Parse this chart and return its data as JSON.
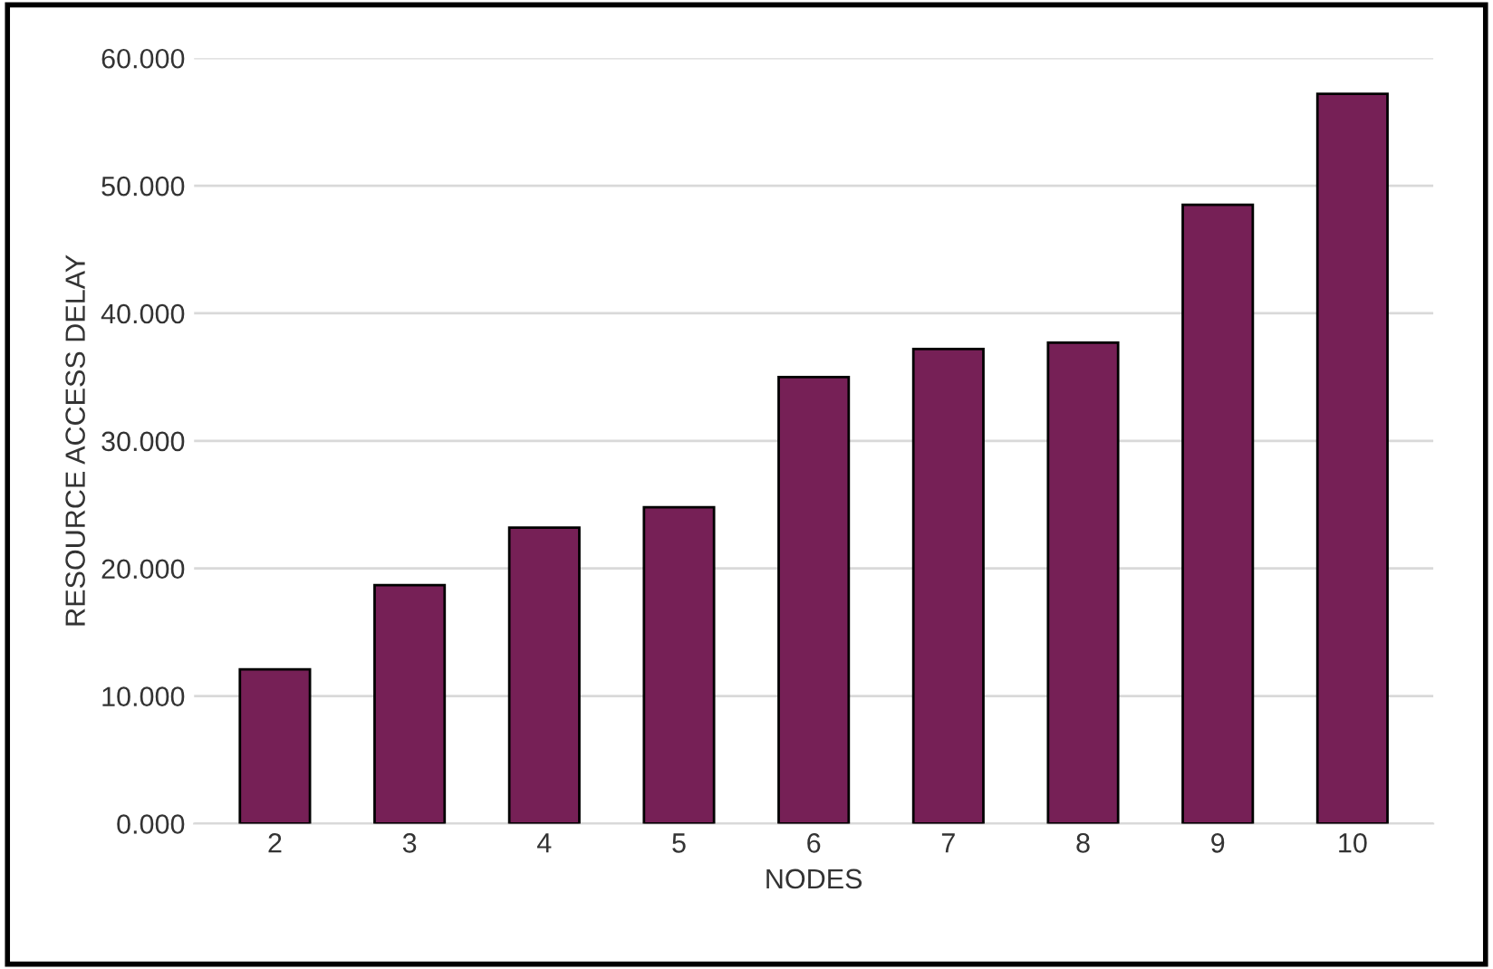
{
  "chart_data": {
    "type": "bar",
    "xlabel": "NODES",
    "ylabel": "RESOURCE ACCESS DELAY",
    "categories": [
      "2",
      "3",
      "4",
      "5",
      "6",
      "7",
      "8",
      "9",
      "10"
    ],
    "values": [
      12.1,
      18.7,
      23.2,
      24.8,
      35.0,
      37.2,
      37.7,
      48.5,
      57.2
    ],
    "color": "#762056",
    "ylim": [
      0,
      60
    ],
    "yticks": [
      {
        "value": 0,
        "label": "0.000"
      },
      {
        "value": 10,
        "label": "10.000"
      },
      {
        "value": 20,
        "label": "20.000"
      },
      {
        "value": 30,
        "label": "30.000"
      },
      {
        "value": 40,
        "label": "40.000"
      },
      {
        "value": 50,
        "label": "50.000"
      },
      {
        "value": 60,
        "label": "60.000"
      }
    ],
    "grid": "y",
    "legend": false
  }
}
